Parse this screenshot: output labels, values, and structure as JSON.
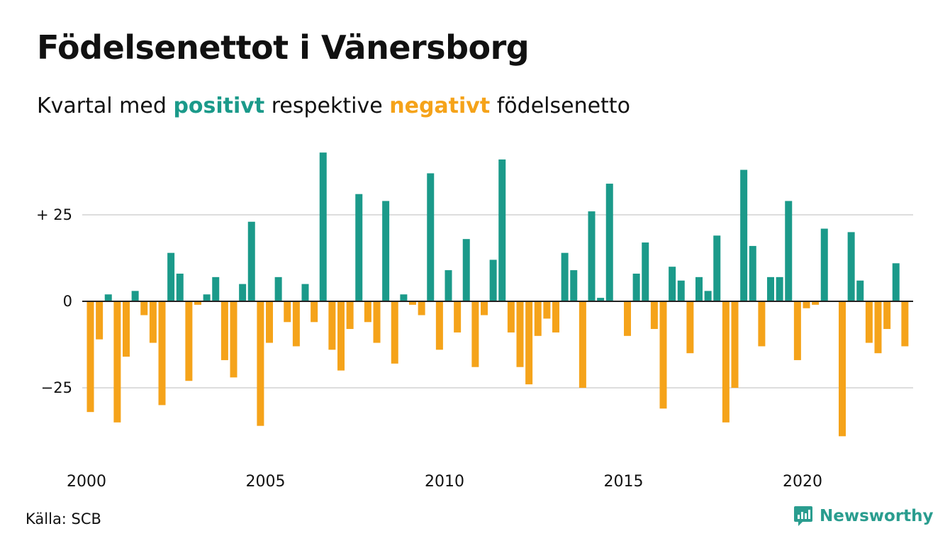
{
  "title": "Födelsenettot i Vänersborg",
  "subtitle": {
    "prefix": "Kvartal med",
    "positive_word": "positivt",
    "middle": "respektive",
    "negative_word": "negativt",
    "suffix": "födelsenetto"
  },
  "source": "Källa: SCB",
  "brand": {
    "name": "Newsworthy",
    "icon": "newsworthy-logo-icon"
  },
  "colors": {
    "positive": "#1b9a8a",
    "negative": "#f5a31a",
    "grid": "#dddddd",
    "axis": "#222222"
  },
  "chart_data": {
    "type": "bar",
    "x_start_year": 2000,
    "periods_per_year": 4,
    "values": [
      -32,
      -11,
      2,
      -35,
      -16,
      3,
      -4,
      -12,
      -30,
      14,
      8,
      -23,
      -1,
      2,
      7,
      -17,
      -22,
      5,
      23,
      -36,
      -12,
      7,
      -6,
      -13,
      5,
      -6,
      43,
      -14,
      -20,
      -8,
      31,
      -6,
      -12,
      29,
      -18,
      2,
      -1,
      -4,
      37,
      -14,
      9,
      -9,
      18,
      -19,
      -4,
      12,
      41,
      -9,
      -19,
      -24,
      -10,
      -5,
      -9,
      14,
      9,
      -25,
      26,
      1,
      34,
      0,
      -10,
      8,
      17,
      -8,
      -31,
      10,
      6,
      -15,
      7,
      3,
      19,
      -35,
      -25,
      38,
      16,
      -13,
      7,
      7,
      29,
      -17,
      -2,
      -1,
      21,
      0,
      -39,
      20,
      6,
      -12,
      -15,
      -8,
      11,
      -13
    ],
    "x_ticks": [
      {
        "year": 2000,
        "label": "2000"
      },
      {
        "year": 2005,
        "label": "2005"
      },
      {
        "year": 2010,
        "label": "2010"
      },
      {
        "year": 2015,
        "label": "2015"
      },
      {
        "year": 2020,
        "label": "2020"
      }
    ],
    "y_ticks": [
      {
        "value": 25,
        "label": "+ 25"
      },
      {
        "value": 0,
        "label": "0"
      },
      {
        "value": -25,
        "label": "−25"
      }
    ],
    "ylim": [
      -43,
      46
    ],
    "grid": true,
    "legend": "none"
  }
}
